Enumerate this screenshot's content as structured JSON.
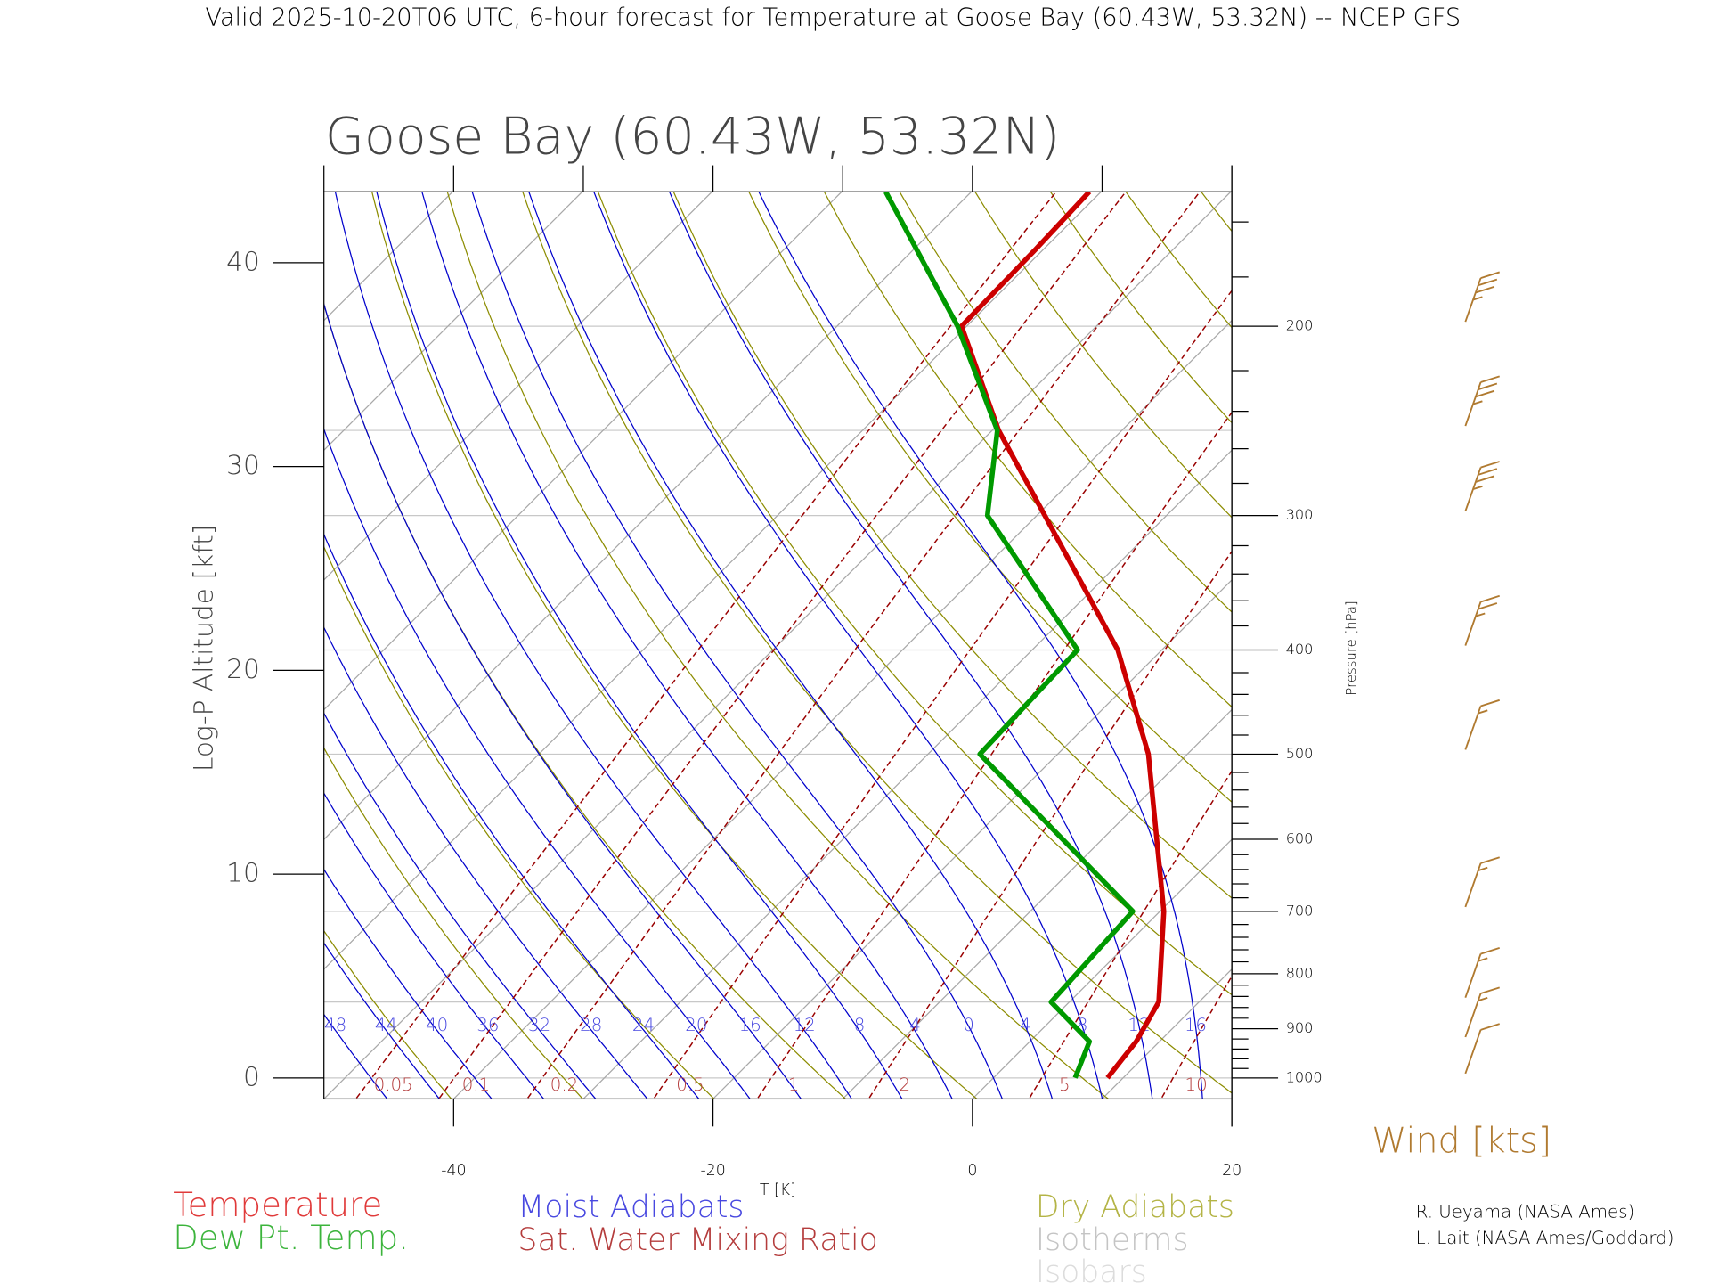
{
  "header": "Valid 2025-10-20T06 UTC, 6-hour forecast for Temperature at Goose Bay (60.43W, 53.32N) -- NCEP GFS",
  "chart_data": {
    "type": "skewt",
    "title": "Goose Bay (60.43W, 53.32N)",
    "x_label": "T [K]",
    "y_label": "Pressure [hPa]",
    "y2_label": "Log-P Altitude [kft]",
    "xlim": [
      -50,
      20
    ],
    "xticks": [
      -40,
      -20,
      0,
      20
    ],
    "xticks_minor": [
      -50,
      -30,
      -10,
      10
    ],
    "log_y": true,
    "ylim": [
      1046,
      150
    ],
    "yticks": [
      1000,
      900,
      800,
      700,
      600,
      500,
      400,
      300,
      200
    ],
    "yticks_minor": [
      980,
      960,
      940,
      920,
      880,
      860,
      840,
      820,
      780,
      760,
      740,
      720,
      680,
      660,
      640,
      620,
      580,
      560,
      540,
      520,
      480,
      460,
      440,
      420,
      380,
      360,
      340,
      320,
      280,
      260,
      240,
      220,
      180,
      160
    ],
    "y2lim": [
      -1.03,
      43.48
    ],
    "y2ticks": [
      0,
      10,
      20,
      30,
      40
    ],
    "isobars": [
      1000,
      850,
      700,
      500,
      400,
      300,
      250,
      200
    ],
    "series": [
      {
        "name": "Temperature",
        "color": "#cc0000",
        "legend_color": "#e03a3a",
        "pressure": [
          1000,
          925,
          850,
          700,
          500,
          400,
          250,
          200,
          170,
          150
        ],
        "values": [
          8.8,
          8.2,
          6.9,
          0.3,
          -13.0,
          -23.4,
          -49.5,
          -60.4,
          -60.6,
          -60.9
        ]
      },
      {
        "name": "Dew Pt. Temp.",
        "color": "#009900",
        "legend_color": "#3cb43c",
        "pressure": [
          1000,
          925,
          850,
          700,
          500,
          400,
          300,
          250,
          200,
          150
        ],
        "values": [
          6.3,
          4.6,
          -1.4,
          -2.1,
          -26.0,
          -26.5,
          -43.8,
          -49.6,
          -60.7,
          -76.6
        ]
      }
    ],
    "moist_adiabats": {
      "name": "Moist Adiabats",
      "color": "#0000cc",
      "legend_color": "#4848e0",
      "values": [
        -48,
        -44,
        -40,
        -36,
        -32,
        -28,
        -24,
        -20,
        -16,
        -12,
        -8,
        -4,
        0,
        4,
        8,
        12,
        16
      ]
    },
    "mixing_ratio": {
      "name": "Sat. Water Mixing Ratio",
      "color": "#990000",
      "legend_color": "#b43c3c",
      "values": [
        0.05,
        0.1,
        0.2,
        0.5,
        1,
        2,
        5,
        10
      ]
    },
    "dry_adiabats": {
      "name": "Dry Adiabats",
      "color": "#8c8c00",
      "legend_color": "#b4b446"
    },
    "isotherms": {
      "name": "Isotherms",
      "color": "#a8a8a8",
      "legend_color": "#c4c4c4"
    },
    "isobar_style": {
      "name": "Isobars",
      "color": "#c8c8c8",
      "legend_color": "#dcdcdc"
    },
    "wind": {
      "label": "Wind [kts]",
      "color": "#b07a30",
      "pressure": [
        1000,
        925,
        850,
        700,
        500,
        400,
        300,
        250,
        200
      ],
      "speed": [
        10,
        15,
        15,
        15,
        15,
        25,
        35,
        35,
        35
      ]
    }
  },
  "credits": [
    "R. Ueyama (NASA Ames)",
    "L. Lait (NASA Ames/Goddard)"
  ]
}
